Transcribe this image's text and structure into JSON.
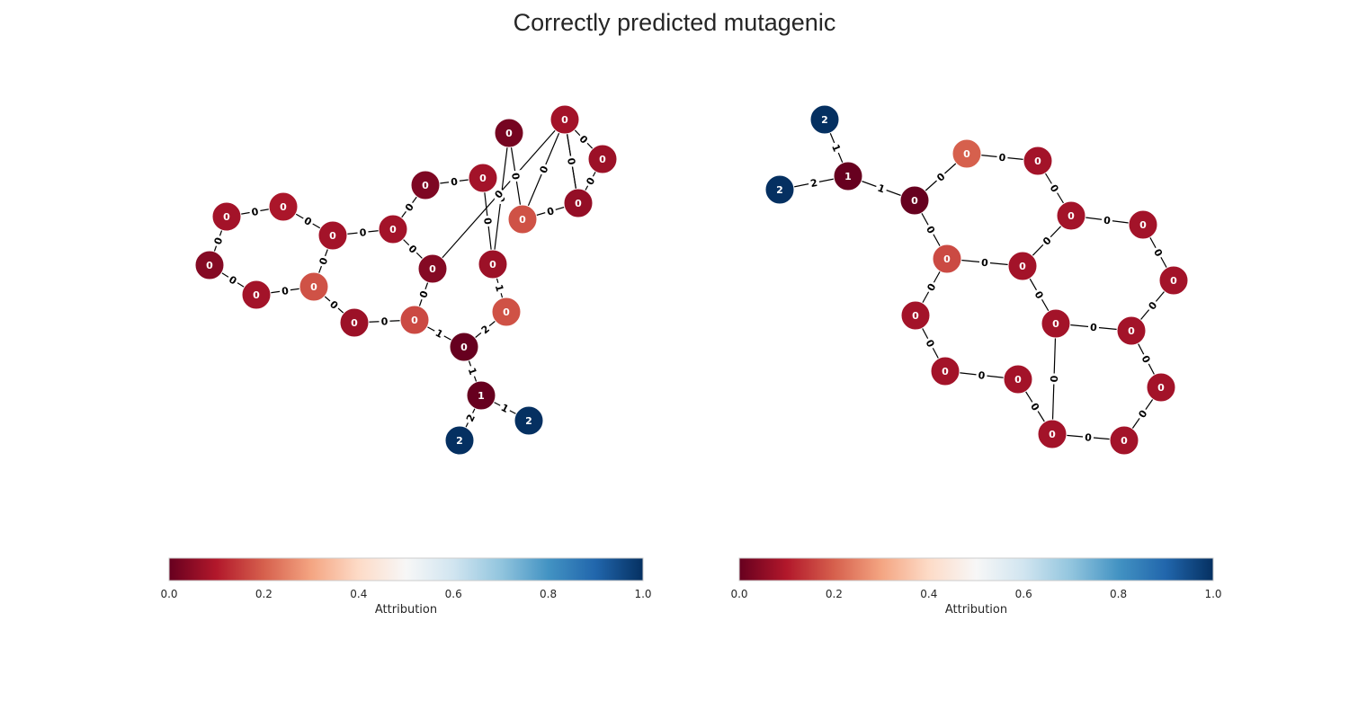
{
  "title": "Correctly predicted mutagenic",
  "colormap": {
    "name": "RdBu",
    "stops": [
      "#67001f",
      "#b2182b",
      "#d6604d",
      "#f4a582",
      "#fddbc7",
      "#f7f7f7",
      "#d1e5f0",
      "#92c5de",
      "#4393c3",
      "#2166ac",
      "#053061"
    ]
  },
  "colorbars": [
    {
      "label": "Attribution",
      "ticks": [
        "0.0",
        "0.2",
        "0.4",
        "0.6",
        "0.8",
        "1.0"
      ]
    },
    {
      "label": "Attribution",
      "ticks": [
        "0.0",
        "0.2",
        "0.4",
        "0.6",
        "0.8",
        "1.0"
      ]
    }
  ],
  "graphs": [
    {
      "nodes": [
        {
          "id": "a",
          "label": "0",
          "attribution": 0.08
        },
        {
          "id": "b",
          "label": "0",
          "attribution": 0.09
        },
        {
          "id": "c",
          "label": "0",
          "attribution": 0.08
        },
        {
          "id": "d",
          "label": "0",
          "attribution": 0.08
        },
        {
          "id": "e",
          "label": "0",
          "attribution": 0.04
        },
        {
          "id": "f",
          "label": "0",
          "attribution": 0.08
        },
        {
          "id": "g",
          "label": "0",
          "attribution": 0.18
        },
        {
          "id": "h",
          "label": "0",
          "attribution": 0.07
        },
        {
          "id": "i",
          "label": "0",
          "attribution": 0.03
        },
        {
          "id": "j",
          "label": "0",
          "attribution": 0.04
        },
        {
          "id": "k",
          "label": "0",
          "attribution": 0.08
        },
        {
          "id": "l",
          "label": "0",
          "attribution": 0.07
        },
        {
          "id": "m",
          "label": "0",
          "attribution": 0.02
        },
        {
          "id": "n",
          "label": "0",
          "attribution": 0.18
        },
        {
          "id": "o",
          "label": "0",
          "attribution": 0.08
        },
        {
          "id": "p",
          "label": "0",
          "attribution": 0.07
        },
        {
          "id": "q",
          "label": "0",
          "attribution": 0.06
        },
        {
          "id": "r",
          "label": "0",
          "attribution": 0.09
        },
        {
          "id": "s",
          "label": "0",
          "attribution": 0.07
        },
        {
          "id": "t",
          "label": "0",
          "attribution": 0.17
        },
        {
          "id": "u",
          "label": "0",
          "attribution": 0.18
        },
        {
          "id": "v",
          "label": "0",
          "attribution": 0.0
        },
        {
          "id": "w",
          "label": "1",
          "attribution": 0.0
        },
        {
          "id": "x",
          "label": "2",
          "attribution": 1.0
        },
        {
          "id": "y",
          "label": "2",
          "attribution": 1.0
        }
      ],
      "edges": [
        {
          "source": "a",
          "target": "b",
          "label": "0"
        },
        {
          "source": "b",
          "target": "c",
          "label": "0"
        },
        {
          "source": "c",
          "target": "d",
          "label": "0"
        },
        {
          "source": "c",
          "target": "g",
          "label": "0"
        },
        {
          "source": "a",
          "target": "e",
          "label": "0"
        },
        {
          "source": "e",
          "target": "f",
          "label": "0"
        },
        {
          "source": "f",
          "target": "g",
          "label": "0"
        },
        {
          "source": "g",
          "target": "h",
          "label": "0"
        },
        {
          "source": "h",
          "target": "t",
          "label": "0"
        },
        {
          "source": "d",
          "target": "i",
          "label": "0"
        },
        {
          "source": "d",
          "target": "j",
          "label": "0"
        },
        {
          "source": "i",
          "target": "k",
          "label": "0"
        },
        {
          "source": "k",
          "target": "l",
          "label": "0"
        },
        {
          "source": "l",
          "target": "m",
          "label": "0"
        },
        {
          "source": "m",
          "target": "n",
          "label": "0"
        },
        {
          "source": "n",
          "target": "o",
          "label": "0"
        },
        {
          "source": "o",
          "target": "j",
          "label": "0"
        },
        {
          "source": "o",
          "target": "p",
          "label": "0"
        },
        {
          "source": "p",
          "target": "q",
          "label": "0"
        },
        {
          "source": "q",
          "target": "r",
          "label": "0"
        },
        {
          "source": "r",
          "target": "s",
          "label": "0"
        },
        {
          "source": "s",
          "target": "n",
          "label": "0"
        },
        {
          "source": "j",
          "target": "t",
          "label": "0"
        },
        {
          "source": "l",
          "target": "u",
          "label": "1"
        },
        {
          "source": "t",
          "target": "v",
          "label": "1"
        },
        {
          "source": "u",
          "target": "v",
          "label": "2"
        },
        {
          "source": "v",
          "target": "w",
          "label": "1"
        },
        {
          "source": "w",
          "target": "x",
          "label": "1"
        },
        {
          "source": "w",
          "target": "y",
          "label": "2"
        }
      ]
    },
    {
      "nodes": [
        {
          "id": "A",
          "label": "2",
          "attribution": 1.0
        },
        {
          "id": "B",
          "label": "2",
          "attribution": 1.0
        },
        {
          "id": "C",
          "label": "1",
          "attribution": 0.0
        },
        {
          "id": "D",
          "label": "0",
          "attribution": 0.0
        },
        {
          "id": "E",
          "label": "0",
          "attribution": 0.2
        },
        {
          "id": "F",
          "label": "0",
          "attribution": 0.08
        },
        {
          "id": "G",
          "label": "0",
          "attribution": 0.08
        },
        {
          "id": "H",
          "label": "0",
          "attribution": 0.08
        },
        {
          "id": "I",
          "label": "0",
          "attribution": 0.08
        },
        {
          "id": "J",
          "label": "0",
          "attribution": 0.17
        },
        {
          "id": "K",
          "label": "0",
          "attribution": 0.08
        },
        {
          "id": "L",
          "label": "0",
          "attribution": 0.08
        },
        {
          "id": "M",
          "label": "0",
          "attribution": 0.08
        },
        {
          "id": "N",
          "label": "0",
          "attribution": 0.08
        },
        {
          "id": "O",
          "label": "0",
          "attribution": 0.08
        },
        {
          "id": "P",
          "label": "0",
          "attribution": 0.08
        },
        {
          "id": "Q",
          "label": "0",
          "attribution": 0.08
        },
        {
          "id": "R",
          "label": "0",
          "attribution": 0.08
        },
        {
          "id": "S",
          "label": "0",
          "attribution": 0.08
        },
        {
          "id": "T",
          "label": "0",
          "attribution": 0.08
        }
      ],
      "edges": [
        {
          "source": "A",
          "target": "C",
          "label": "1"
        },
        {
          "source": "B",
          "target": "C",
          "label": "2"
        },
        {
          "source": "C",
          "target": "D",
          "label": "1"
        },
        {
          "source": "D",
          "target": "E",
          "label": "0"
        },
        {
          "source": "E",
          "target": "F",
          "label": "0"
        },
        {
          "source": "F",
          "target": "G",
          "label": "0"
        },
        {
          "source": "G",
          "target": "K",
          "label": "0"
        },
        {
          "source": "G",
          "target": "H",
          "label": "0"
        },
        {
          "source": "H",
          "target": "I",
          "label": "0"
        },
        {
          "source": "I",
          "target": "N",
          "label": "0"
        },
        {
          "source": "D",
          "target": "J",
          "label": "0"
        },
        {
          "source": "J",
          "target": "K",
          "label": "0"
        },
        {
          "source": "J",
          "target": "L",
          "label": "0"
        },
        {
          "source": "K",
          "target": "M",
          "label": "0"
        },
        {
          "source": "L",
          "target": "P",
          "label": "0"
        },
        {
          "source": "P",
          "target": "Q",
          "label": "0"
        },
        {
          "source": "Q",
          "target": "R",
          "label": "0"
        },
        {
          "source": "R",
          "target": "M",
          "label": "0"
        },
        {
          "source": "M",
          "target": "N",
          "label": "0"
        },
        {
          "source": "N",
          "target": "O",
          "label": "0"
        },
        {
          "source": "O",
          "target": "T",
          "label": "0"
        },
        {
          "source": "T",
          "target": "S",
          "label": "0"
        },
        {
          "source": "S",
          "target": "R",
          "label": "0"
        }
      ]
    }
  ]
}
